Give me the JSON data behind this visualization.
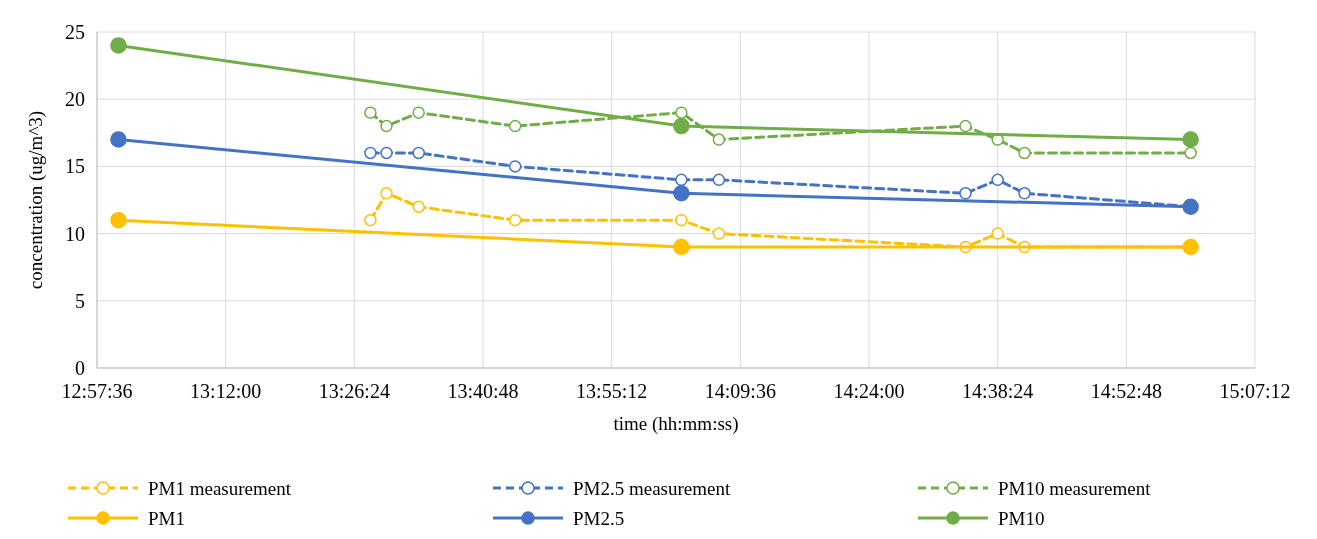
{
  "chart_data": {
    "type": "line",
    "xlabel": "time (hh:mm:ss)",
    "ylabel": "concentration (ug/m^3)",
    "xlim": [
      12.96,
      15.12
    ],
    "xticks": [
      {
        "value": 12.96,
        "label": "12:57:36"
      },
      {
        "value": 13.2,
        "label": "13:12:00"
      },
      {
        "value": 13.44,
        "label": "13:26:24"
      },
      {
        "value": 13.68,
        "label": "13:40:48"
      },
      {
        "value": 13.92,
        "label": "13:55:12"
      },
      {
        "value": 14.16,
        "label": "14:09:36"
      },
      {
        "value": 14.4,
        "label": "14:24:00"
      },
      {
        "value": 14.64,
        "label": "14:38:24"
      },
      {
        "value": 14.88,
        "label": "14:52:48"
      },
      {
        "value": 15.12,
        "label": "15:07:12"
      }
    ],
    "ylim": [
      0,
      25
    ],
    "yticks": [
      0,
      5,
      10,
      15,
      20,
      25
    ],
    "grid": true,
    "legend": "bottom",
    "marker": "circle",
    "series": [
      {
        "name": "PM1 measurement",
        "color": "#ffc000",
        "line_style": "dashed",
        "x": [
          13.47,
          13.5,
          13.56,
          13.74,
          14.05,
          14.12,
          14.58,
          14.64,
          14.69,
          15.0
        ],
        "values": [
          11,
          13,
          12,
          11,
          11,
          10,
          9,
          10,
          9,
          9
        ]
      },
      {
        "name": "PM2.5 measurement",
        "color": "#4472c4",
        "line_style": "dashed",
        "x": [
          13.47,
          13.5,
          13.56,
          13.74,
          14.05,
          14.12,
          14.58,
          14.64,
          14.69,
          15.0
        ],
        "values": [
          16,
          16,
          16,
          15,
          14,
          14,
          13,
          14,
          13,
          12
        ]
      },
      {
        "name": "PM10 measurement",
        "color": "#70ad47",
        "line_style": "dashed",
        "x": [
          13.47,
          13.5,
          13.56,
          13.74,
          14.05,
          14.12,
          14.58,
          14.64,
          14.69,
          15.0
        ],
        "values": [
          19,
          18,
          19,
          18,
          19,
          17,
          18,
          17,
          16,
          16
        ]
      },
      {
        "name": "PM1",
        "color": "#ffc000",
        "line_style": "solid",
        "x": [
          13.0,
          14.05,
          15.0
        ],
        "values": [
          11,
          9,
          9
        ]
      },
      {
        "name": "PM2.5",
        "color": "#4472c4",
        "line_style": "solid",
        "x": [
          13.0,
          14.05,
          15.0
        ],
        "values": [
          17,
          13,
          12
        ]
      },
      {
        "name": "PM10",
        "color": "#70ad47",
        "line_style": "solid",
        "x": [
          13.0,
          14.05,
          15.0
        ],
        "values": [
          24,
          18,
          17
        ]
      }
    ]
  }
}
